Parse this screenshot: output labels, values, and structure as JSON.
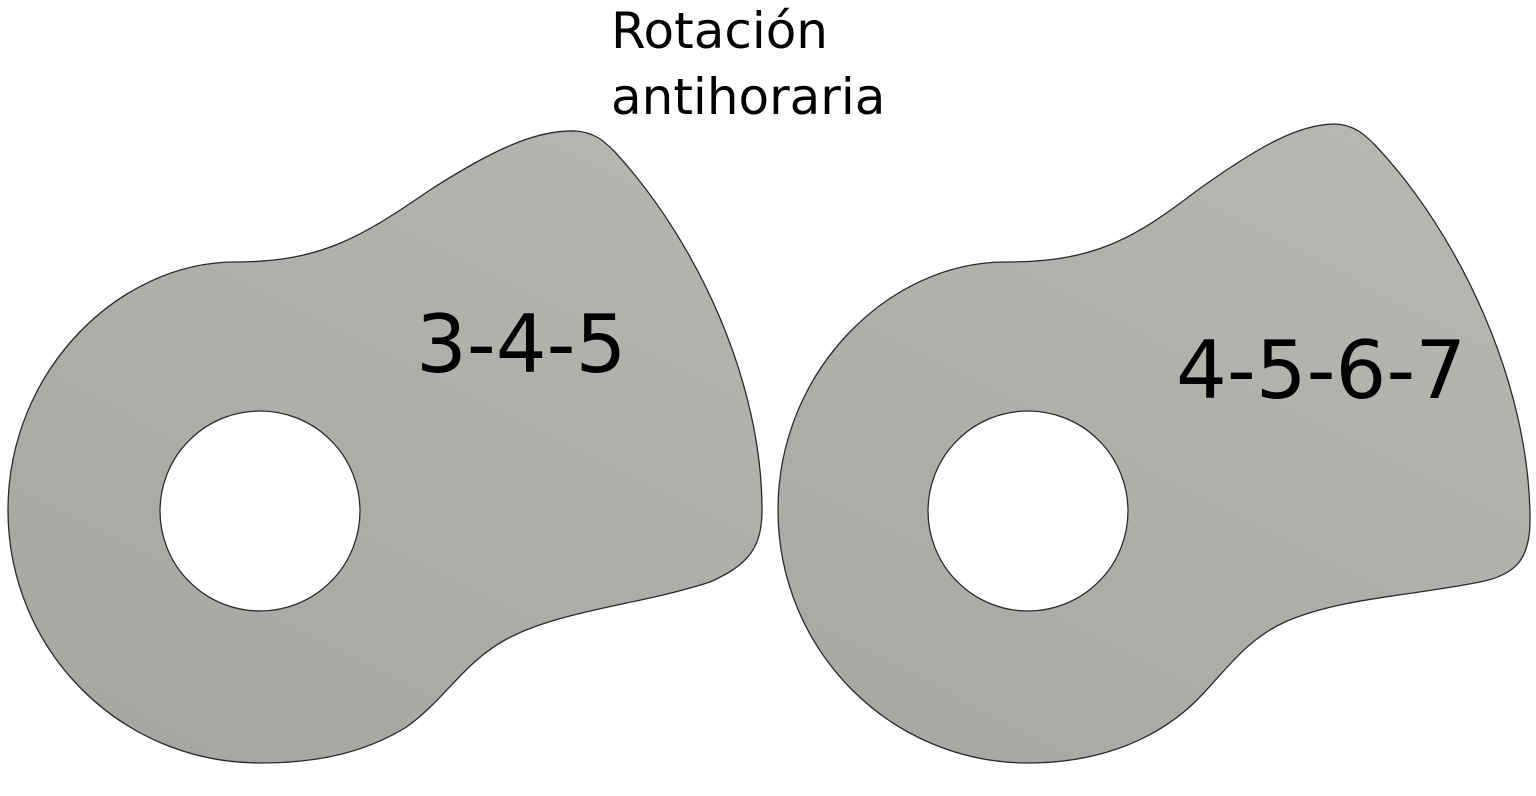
{
  "title": {
    "line1": "Rotación",
    "line2": "antihoraria"
  },
  "cams": [
    {
      "label": "3-4-5"
    },
    {
      "label": "4-5-6-7"
    }
  ],
  "colors": {
    "cam_fill_light": "#b5b4b0",
    "cam_fill_dark": "#a7a6a2",
    "outline": "#2a2a2a",
    "hole_fill": "#ffffff",
    "text": "#000000"
  }
}
